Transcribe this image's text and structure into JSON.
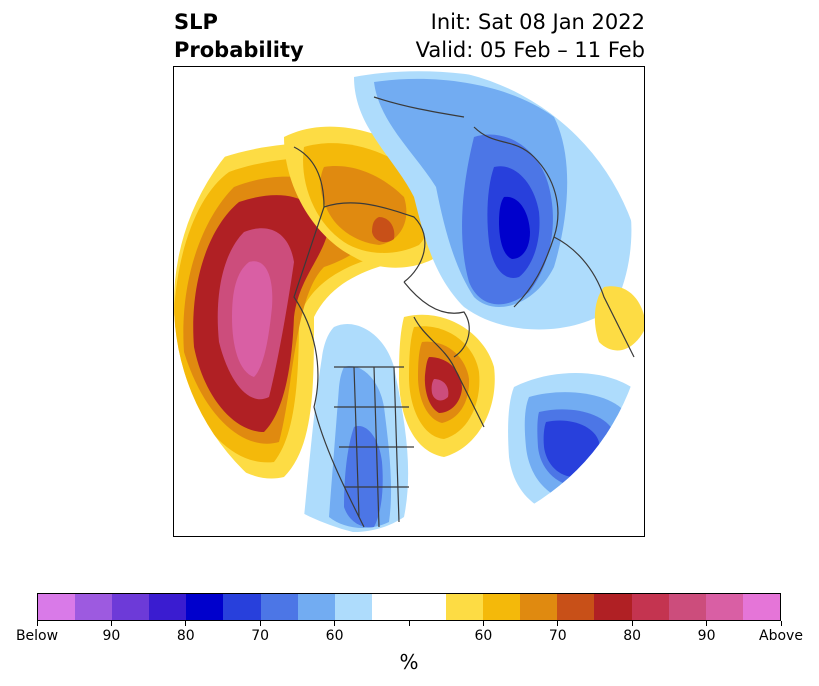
{
  "title": {
    "left_line1": "SLP",
    "left_line2": "Probability",
    "right_line1": "Init: Sat 08 Jan 2022",
    "right_line2": "Valid: 05 Feb – 11 Feb"
  },
  "colorbar": {
    "colors": [
      "#d97ae8",
      "#9d5ae0",
      "#6d3ad8",
      "#3a1cd0",
      "#0000cc",
      "#2840dc",
      "#4c76e6",
      "#72acf2",
      "#aedcfc",
      "#ffffff",
      "#ffffff",
      "#fddc44",
      "#f4b90a",
      "#e08a10",
      "#c85018",
      "#b02024",
      "#c43450",
      "#cc4d7c",
      "#d95fa4",
      "#e575d8"
    ],
    "tick_labels": [
      "Below",
      "90",
      "80",
      "70",
      "60",
      "",
      "60",
      "70",
      "80",
      "90",
      "Above"
    ],
    "unit": "%"
  },
  "map": {
    "description_colors": {
      "below_low": "#aedcfc",
      "below_mid": "#72acf2",
      "below_high": "#4c76e6",
      "below_max": "#0000cc",
      "above_low": "#fddc44",
      "above_mid": "#f4b90a",
      "above_high": "#e08a10",
      "above_higher": "#b02024",
      "above_max": "#d95fa4",
      "coast": "#3a3a3a"
    }
  }
}
